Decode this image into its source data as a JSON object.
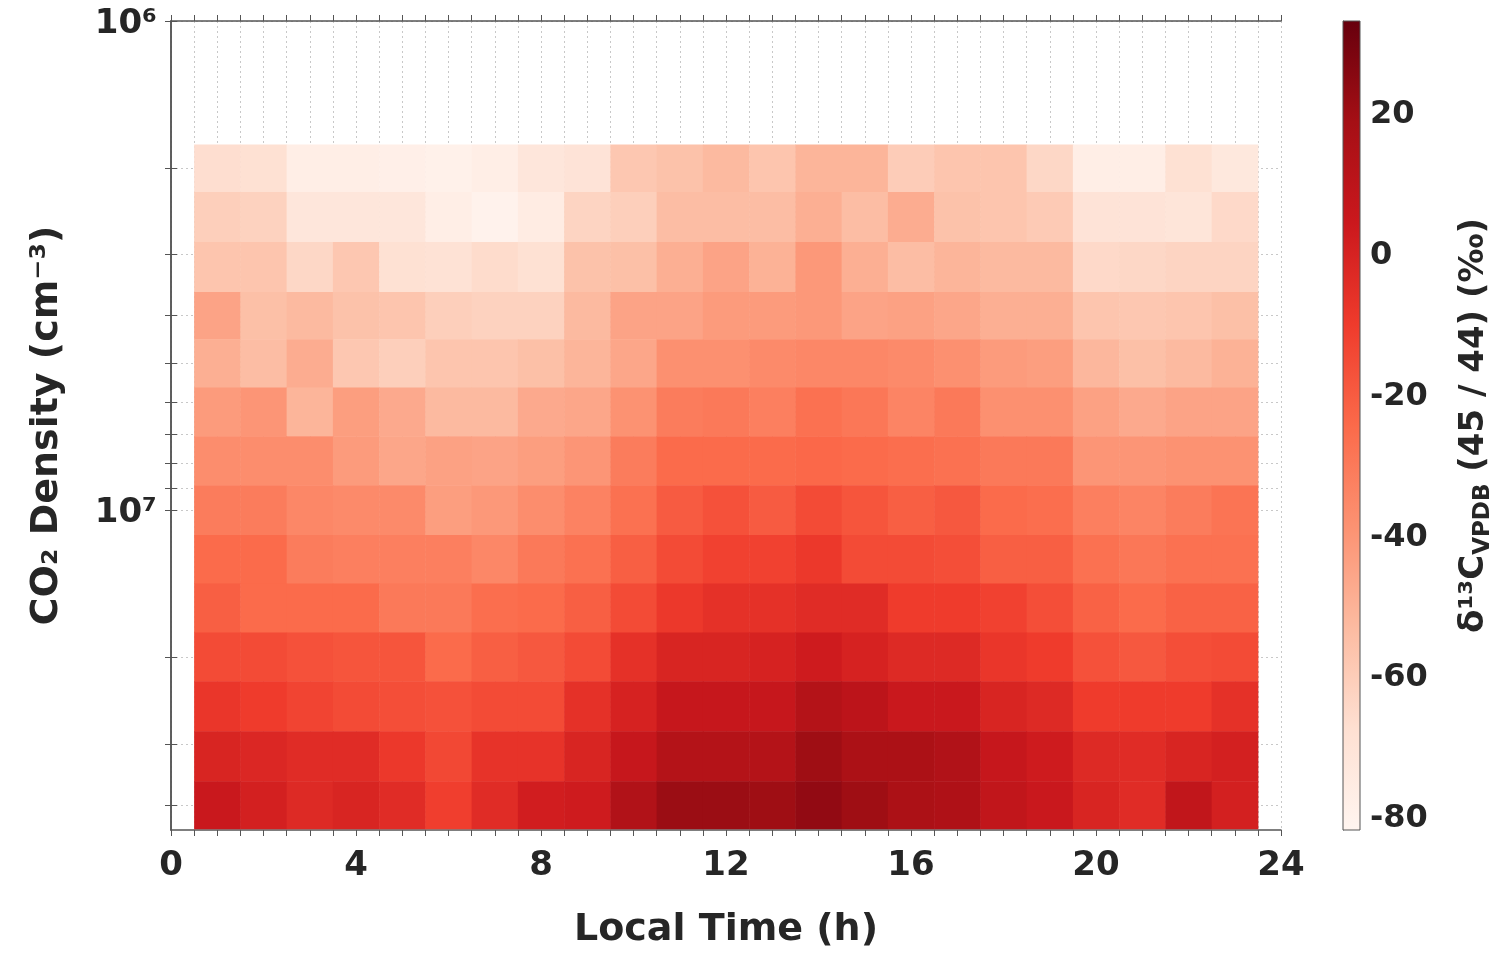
{
  "chart_data": {
    "type": "heatmap",
    "xlabel": "Local Time (h)",
    "ylabel": "CO₂ Density (cm⁻³)",
    "clabel": "δ¹³C$_{VPDB}$ (45 / 44) (‰)",
    "log": "y",
    "grid": true,
    "xlim": [
      0,
      24
    ],
    "xticks": [
      0,
      {
        "value": 0.5,
        "label": null
      },
      {
        "value": 1,
        "label": null
      },
      {
        "value": 1.5,
        "label": null
      },
      {
        "value": 2,
        "label": null
      },
      {
        "value": 2.5,
        "label": null
      },
      {
        "value": 3,
        "label": null
      },
      {
        "value": 3.5,
        "label": null
      },
      4,
      {
        "value": 4.5,
        "label": null
      },
      {
        "value": 5,
        "label": null
      },
      {
        "value": 5.5,
        "label": null
      },
      {
        "value": 6,
        "label": null
      },
      {
        "value": 6.5,
        "label": null
      },
      {
        "value": 7,
        "label": null
      },
      {
        "value": 7.5,
        "label": null
      },
      8,
      {
        "value": 8.5,
        "label": null
      },
      {
        "value": 9,
        "label": null
      },
      {
        "value": 9.5,
        "label": null
      },
      {
        "value": 10,
        "label": null
      },
      {
        "value": 10.5,
        "label": null
      },
      {
        "value": 11,
        "label": null
      },
      {
        "value": 11.5,
        "label": null
      },
      12,
      {
        "value": 12.5,
        "label": null
      },
      {
        "value": 13,
        "label": null
      },
      {
        "value": 13.5,
        "label": null
      },
      {
        "value": 14,
        "label": null
      },
      {
        "value": 14.5,
        "label": null
      },
      {
        "value": 15,
        "label": null
      },
      {
        "value": 15.5,
        "label": null
      },
      16,
      {
        "value": 16.5,
        "label": null
      },
      {
        "value": 17,
        "label": null
      },
      {
        "value": 17.5,
        "label": null
      },
      {
        "value": 18,
        "label": null
      },
      {
        "value": 18.5,
        "label": null
      },
      {
        "value": 19,
        "label": null
      },
      {
        "value": 19.5,
        "label": null
      },
      20,
      {
        "value": 20.5,
        "label": null
      },
      {
        "value": 21,
        "label": null
      },
      {
        "value": 21.5,
        "label": null
      },
      {
        "value": 22,
        "label": null
      },
      {
        "value": 22.5,
        "label": null
      },
      {
        "value": 23,
        "label": null
      },
      {
        "value": 23.5,
        "label": null
      },
      24
    ],
    "ylim": [
      45000000,
      1000000
    ],
    "yticks": [
      {
        "value": 1000000,
        "label": "10⁶"
      },
      {
        "value": 2000000,
        "label": null
      },
      {
        "value": 3000000,
        "label": null
      },
      {
        "value": 4000000,
        "label": null
      },
      {
        "value": 5000000,
        "label": null
      },
      {
        "value": 6000000,
        "label": null
      },
      {
        "value": 7000000,
        "label": null
      },
      {
        "value": 8000000,
        "label": null
      },
      {
        "value": 9000000,
        "label": null
      },
      {
        "value": 10000000,
        "label": "10⁷"
      },
      {
        "value": 20000000,
        "label": null
      },
      {
        "value": 30000000,
        "label": null
      },
      {
        "value": 40000000,
        "label": null
      }
    ],
    "clim": [
      -82,
      33
    ],
    "cticks": [
      -80,
      -60,
      -40,
      -20,
      0,
      20
    ],
    "x": [
      1,
      2,
      3,
      4,
      5,
      6,
      7,
      8,
      9,
      10,
      11,
      12,
      13,
      14,
      15,
      16,
      17,
      18,
      19,
      20,
      21,
      22,
      23
    ],
    "y": [
      2000000,
      2500000,
      3200000,
      4000000,
      5000000,
      6300000,
      7900000,
      10000000,
      12600000,
      15800000,
      20000000,
      25000000,
      32000000,
      40000000
    ],
    "cells": [
      [
        -67,
        -68,
        -77,
        -77,
        -78,
        -79,
        -77,
        -72,
        -70,
        -58,
        -56,
        -53,
        -57,
        -51,
        -51,
        -60,
        -57,
        -57,
        -64,
        -77,
        -77,
        -68,
        -73
      ],
      [
        -61,
        -62,
        -72,
        -72,
        -72,
        -77,
        -80,
        -76,
        -63,
        -61,
        -54,
        -54,
        -54,
        -49,
        -54,
        -48,
        -56,
        -57,
        -59,
        -70,
        -70,
        -71,
        -65
      ],
      [
        -57,
        -57,
        -64,
        -58,
        -68,
        -69,
        -66,
        -68,
        -56,
        -55,
        -49,
        -45,
        -50,
        -41,
        -49,
        -54,
        -51,
        -53,
        -53,
        -65,
        -64,
        -63,
        -63
      ],
      [
        -45,
        -55,
        -53,
        -56,
        -57,
        -61,
        -62,
        -62,
        -53,
        -45,
        -45,
        -42,
        -42,
        -41,
        -45,
        -44,
        -46,
        -49,
        -49,
        -57,
        -58,
        -57,
        -55
      ],
      [
        -49,
        -54,
        -48,
        -58,
        -61,
        -57,
        -57,
        -55,
        -51,
        -46,
        -38,
        -38,
        -36,
        -35,
        -35,
        -36,
        -38,
        -42,
        -43,
        -52,
        -55,
        -53,
        -50
      ],
      [
        -42,
        -40,
        -51,
        -43,
        -47,
        -53,
        -53,
        -47,
        -46,
        -39,
        -31,
        -30,
        -32,
        -27,
        -29,
        -34,
        -30,
        -38,
        -38,
        -44,
        -47,
        -45,
        -45
      ],
      [
        -37,
        -37,
        -37,
        -42,
        -46,
        -44,
        -45,
        -43,
        -40,
        -31,
        -25,
        -25,
        -25,
        -24,
        -25,
        -26,
        -27,
        -30,
        -30,
        -40,
        -40,
        -39,
        -39
      ],
      [
        -31,
        -31,
        -35,
        -36,
        -36,
        -43,
        -41,
        -37,
        -33,
        -27,
        -20,
        -17,
        -20,
        -15,
        -18,
        -21,
        -19,
        -25,
        -26,
        -32,
        -34,
        -31,
        -28
      ],
      [
        -25,
        -25,
        -31,
        -32,
        -32,
        -32,
        -35,
        -30,
        -27,
        -21,
        -15,
        -12,
        -12,
        -9,
        -15,
        -15,
        -16,
        -21,
        -21,
        -27,
        -29,
        -27,
        -27
      ],
      [
        -21,
        -25,
        -25,
        -25,
        -30,
        -30,
        -26,
        -25,
        -21,
        -15,
        -9,
        -6,
        -6,
        -4,
        -4,
        -10,
        -10,
        -12,
        -16,
        -22,
        -25,
        -22,
        -22
      ],
      [
        -15,
        -15,
        -17,
        -18,
        -18,
        -25,
        -21,
        -19,
        -15,
        -6,
        -1,
        -1,
        0,
        3,
        0,
        -3,
        -3,
        -8,
        -10,
        -17,
        -19,
        -16,
        -15
      ],
      [
        -8,
        -10,
        -13,
        -15,
        -16,
        -17,
        -15,
        -15,
        -6,
        0,
        6,
        6,
        6,
        13,
        10,
        5,
        5,
        -1,
        -3,
        -10,
        -10,
        -10,
        -6
      ],
      [
        -1,
        -2,
        -4,
        -4,
        -9,
        -14,
        -7,
        -7,
        -1,
        6,
        13,
        13,
        13,
        20,
        16,
        16,
        14,
        6,
        3,
        -3,
        -4,
        -1,
        1
      ],
      [
        5,
        1,
        -3,
        -1,
        -4,
        -11,
        -4,
        2,
        3,
        14,
        21,
        21,
        20,
        23,
        20,
        16,
        15,
        8,
        5,
        -1,
        -4,
        8,
        1
      ]
    ]
  }
}
